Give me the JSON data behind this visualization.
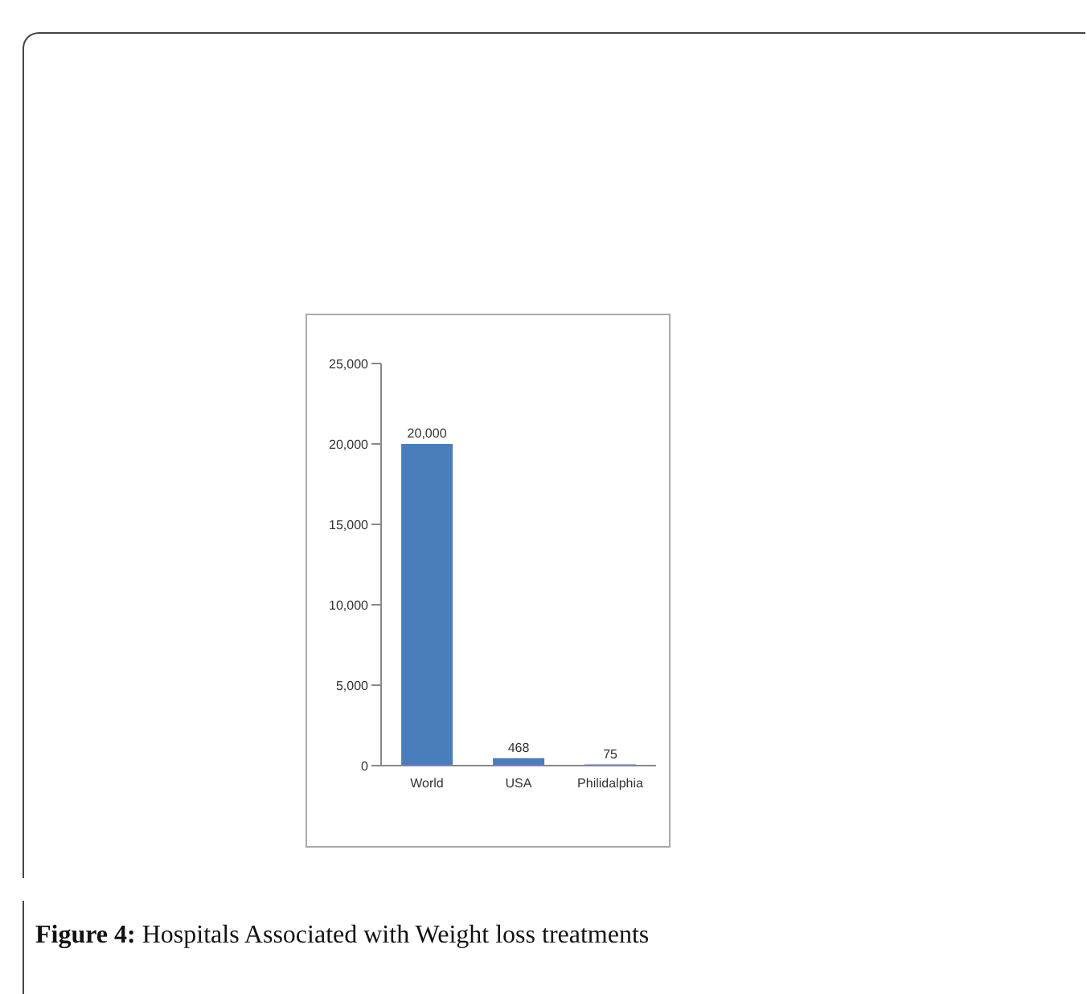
{
  "chart_data": {
    "type": "bar",
    "categories": [
      "World",
      "USA",
      "Philidalphia"
    ],
    "values": [
      20000,
      468,
      75
    ],
    "color": "#4a7ebb",
    "value_labels": [
      "20,000",
      "468",
      "75"
    ],
    "ylim": [
      0,
      25000
    ],
    "yticks": [
      {
        "value": 0,
        "label": "0"
      },
      {
        "value": 5000,
        "label": "5,000"
      },
      {
        "value": 10000,
        "label": "10,000"
      },
      {
        "value": 15000,
        "label": "15,000"
      },
      {
        "value": 20000,
        "label": "20,000"
      },
      {
        "value": 25000,
        "label": "25,000"
      }
    ],
    "grid": false,
    "legend": false,
    "annotations": [
      "Figure 4: Hospitals Associated with Weight loss treatments"
    ]
  }
}
